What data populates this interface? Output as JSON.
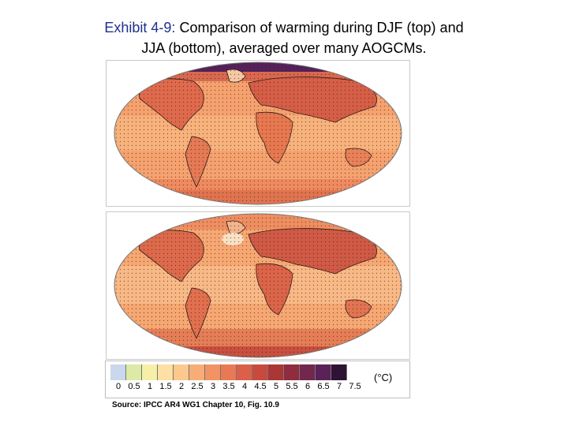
{
  "title": {
    "lead": "Exhibit 4-9:",
    "rest_line1": " Comparison of warming during DJF (top) and",
    "line2": "JJA (bottom), averaged over many AOGCMs."
  },
  "maps": [
    {
      "name": "DJF"
    },
    {
      "name": "JJA"
    }
  ],
  "colorbar": {
    "unit": "(°C)",
    "ticks": [
      "0",
      "0.5",
      "1",
      "1.5",
      "2",
      "2.5",
      "3",
      "3.5",
      "4",
      "4.5",
      "5",
      "5.5",
      "6",
      "6.5",
      "7",
      "7.5"
    ],
    "colors": [
      "#c9d8ee",
      "#dceaa6",
      "#f6efa7",
      "#fde0a2",
      "#fcc88e",
      "#f8ad77",
      "#f29363",
      "#e97955",
      "#dc6049",
      "#c84a3e",
      "#ab3636",
      "#8f2c3f",
      "#72274c",
      "#5b2159",
      "#2e1335"
    ]
  },
  "source": "Source: IPCC AR4 WG1 Chapter 10, Fig. 10.9"
}
